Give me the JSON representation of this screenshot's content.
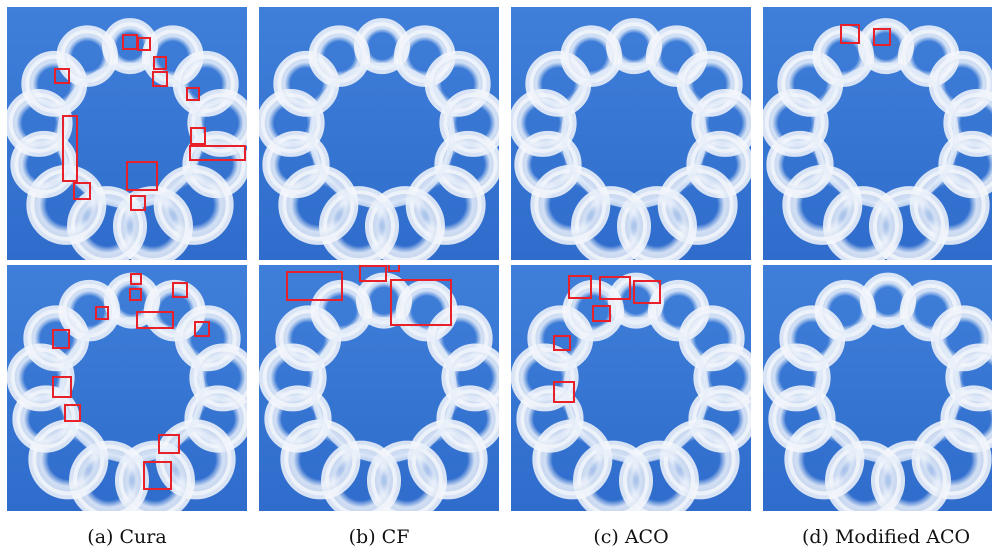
{
  "captions": [
    "(a) Cura",
    "(b) CF",
    "(c) ACO",
    "(d) Modified ACO"
  ]
}
